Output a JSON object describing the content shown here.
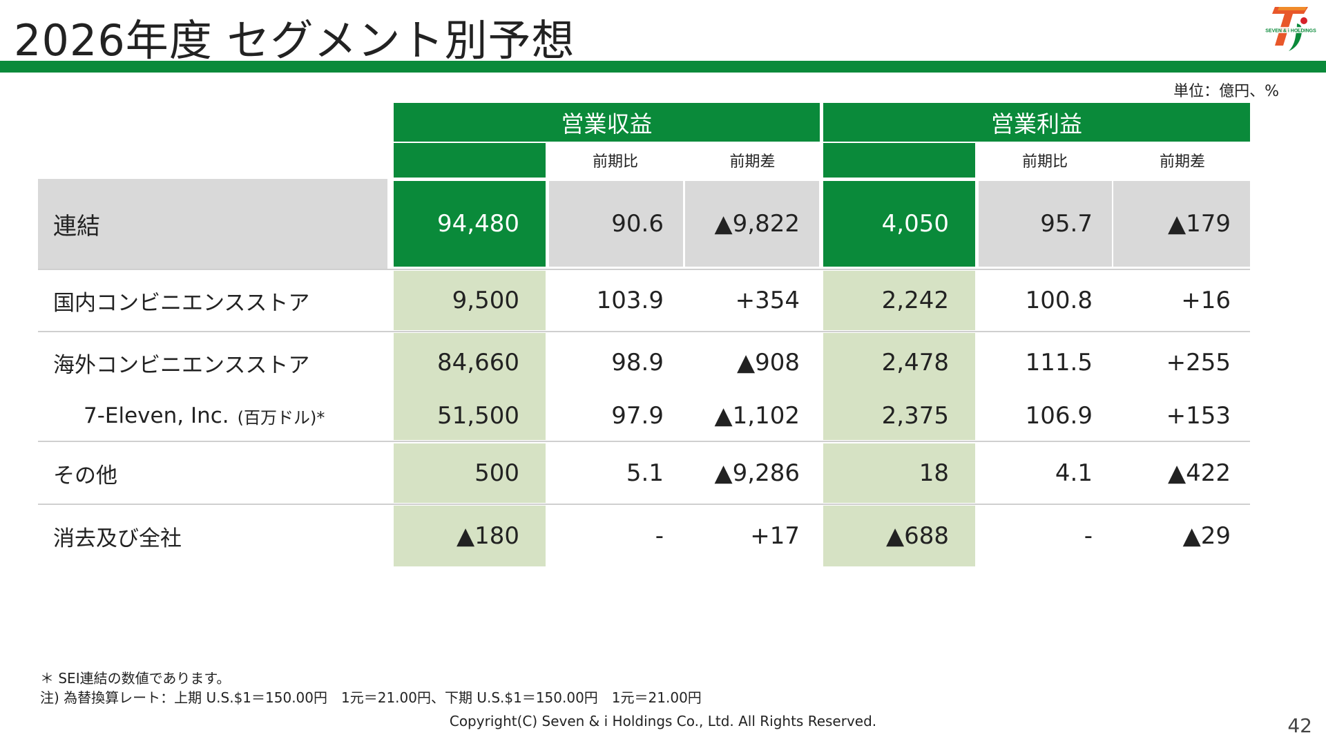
{
  "slide": {
    "title": "2026年度 セグメント別予想",
    "unit": "単位：億円、%",
    "page_number": "42",
    "copyright": "Copyright(C) Seven & i Holdings Co., Ltd. All Rights Reserved.",
    "logo_text": "SEVEN & i HOLDINGS",
    "notes": [
      "＊ SEI連結の数値であります。",
      "注) 為替換算レート：上期 U.S.$1＝150.00円　1元＝21.00円、下期 U.S.$1＝150.00円　1元＝21.00円"
    ]
  },
  "table": {
    "groups": [
      "営業収益",
      "営業利益"
    ],
    "subheaders": [
      "前期比",
      "前期差"
    ],
    "rows": [
      {
        "label": "連結",
        "rev": "94,480",
        "rev_ratio": "90.6",
        "rev_diff": "▲9,822",
        "op": "4,050",
        "op_ratio": "95.7",
        "op_diff": "▲179"
      },
      {
        "label": "国内コンビニエンスストア",
        "rev": "9,500",
        "rev_ratio": "103.9",
        "rev_diff": "+354",
        "op": "2,242",
        "op_ratio": "100.8",
        "op_diff": "+16"
      },
      {
        "label": "海外コンビニエンスストア",
        "rev": "84,660",
        "rev_ratio": "98.9",
        "rev_diff": "▲908",
        "op": "2,478",
        "op_ratio": "111.5",
        "op_diff": "+255"
      },
      {
        "label": "7-Eleven, Inc.",
        "label_suffix": "(百万ドル)*",
        "rev": "51,500",
        "rev_ratio": "97.9",
        "rev_diff": "▲1,102",
        "op": "2,375",
        "op_ratio": "106.9",
        "op_diff": "+153"
      },
      {
        "label": "その他",
        "rev": "500",
        "rev_ratio": "5.1",
        "rev_diff": "▲9,286",
        "op": "18",
        "op_ratio": "4.1",
        "op_diff": "▲422"
      },
      {
        "label": "消去及び全社",
        "rev": "▲180",
        "rev_ratio": "-",
        "rev_diff": "+17",
        "op": "▲688",
        "op_ratio": "-",
        "op_diff": "▲29"
      }
    ]
  }
}
